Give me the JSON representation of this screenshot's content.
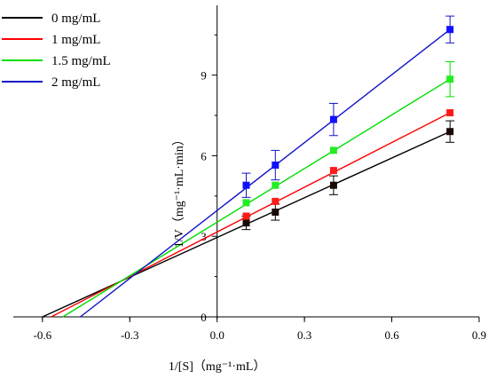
{
  "chart_data": {
    "type": "line",
    "xlabel": "1/[S]（mg⁻¹·mL）",
    "ylabel": "1/V（mg⁻¹·mL·min）",
    "xlim": [
      -0.7,
      0.9
    ],
    "ylim": [
      0,
      11.6
    ],
    "x_ticks": [
      -0.6,
      -0.3,
      0,
      0.3,
      0.6,
      0.9
    ],
    "x_tick_labels": [
      "-0.6",
      "-0.3",
      "0.0",
      "0.3",
      "0.6",
      "0.9"
    ],
    "y_ticks": [
      0,
      3,
      6,
      9
    ],
    "y_tick_labels": [
      "0",
      "3",
      "6",
      "9"
    ],
    "grid": false,
    "legend_position": "top-left",
    "x_points": [
      0.1,
      0.2,
      0.4,
      0.8
    ],
    "series": [
      {
        "name": "0 mg/mL",
        "color": "#000000",
        "marker_color": "#1a0a05",
        "points": [
          3.5,
          3.9,
          4.9,
          6.9
        ],
        "errors": [
          0.25,
          0.3,
          0.35,
          0.4
        ],
        "fit_x": [
          -0.6,
          0.8
        ],
        "fit_y": [
          0.0,
          6.9
        ]
      },
      {
        "name": "1 mg/mL",
        "color": "#ff0000",
        "marker_color": "#ff1a1a",
        "points": [
          3.75,
          4.3,
          5.45,
          7.6
        ],
        "errors": [
          0.0,
          0.0,
          0.0,
          0.0
        ],
        "fit_x": [
          -0.57,
          0.8
        ],
        "fit_y": [
          0.0,
          7.6
        ]
      },
      {
        "name": "1.5 mg/mL",
        "color": "#00dd00",
        "marker_color": "#22ee22",
        "points": [
          4.25,
          4.9,
          6.2,
          8.85
        ],
        "errors": [
          0.0,
          0.0,
          0.0,
          0.65
        ],
        "fit_x": [
          -0.53,
          0.8
        ],
        "fit_y": [
          0.0,
          8.85
        ]
      },
      {
        "name": "2 mg/mL",
        "color": "#1414c8",
        "marker_color": "#1010ff",
        "points": [
          4.9,
          5.65,
          7.35,
          10.7
        ],
        "errors": [
          0.45,
          0.55,
          0.6,
          0.5
        ],
        "fit_x": [
          -0.47,
          0.8
        ],
        "fit_y": [
          0.0,
          10.7
        ]
      }
    ]
  }
}
